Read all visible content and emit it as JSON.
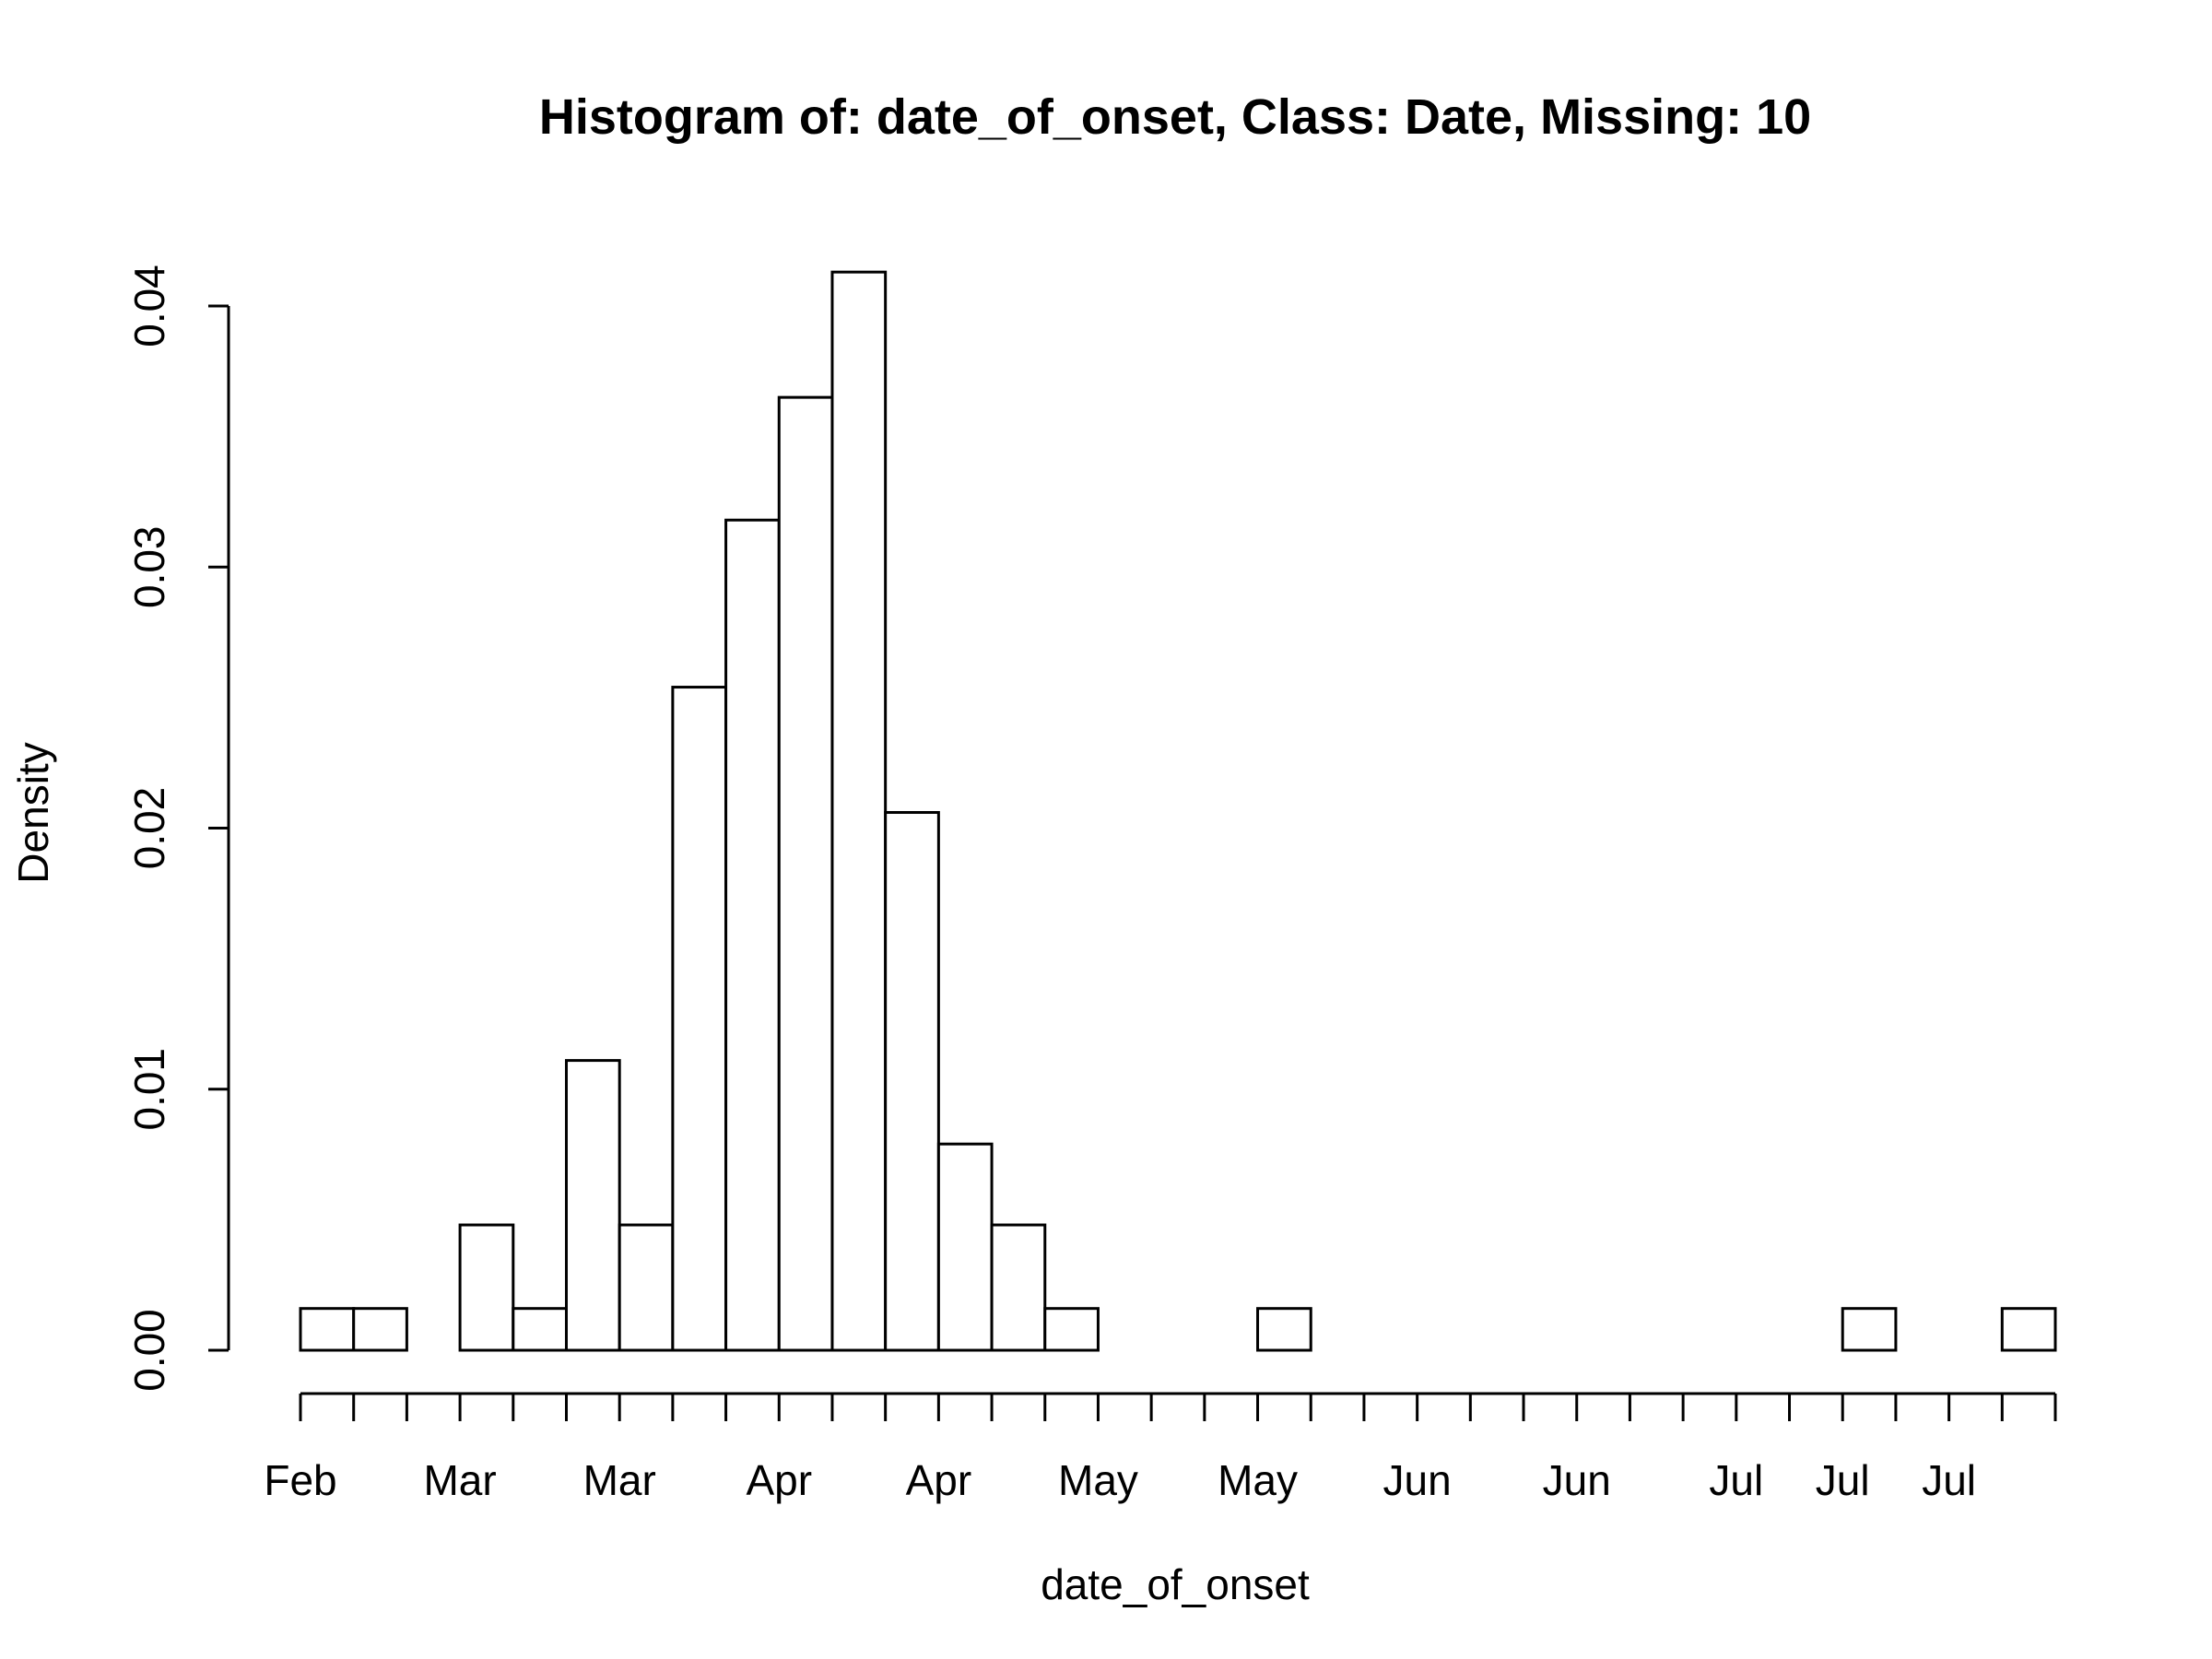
{
  "chart_data": {
    "type": "bar",
    "title": "Histogram of: date_of_onset, Class: Date, Missing: 10",
    "xlabel": "date_of_onset",
    "ylabel": "Density",
    "bin_width_days": 7,
    "bins_start": "2014-02-09",
    "values": [
      0.0016,
      0.0016,
      0,
      0.0048,
      0.0016,
      0.0111,
      0.0048,
      0.0254,
      0.0318,
      0.0365,
      0.0413,
      0.0206,
      0.0079,
      0.0048,
      0.0016,
      0,
      0,
      0,
      0.0016,
      0,
      0,
      0,
      0,
      0,
      0,
      0,
      0,
      0,
      0,
      0.0016,
      0,
      0,
      0.0016
    ],
    "ylim": [
      0,
      0.04
    ],
    "yticks": [
      "0.00",
      "0.01",
      "0.02",
      "0.03",
      "0.04"
    ],
    "xtick_labels": [
      {
        "bin": 0,
        "label": "Feb"
      },
      {
        "bin": 3,
        "label": "Mar"
      },
      {
        "bin": 6,
        "label": "Mar"
      },
      {
        "bin": 9,
        "label": "Apr"
      },
      {
        "bin": 12,
        "label": "Apr"
      },
      {
        "bin": 15,
        "label": "May"
      },
      {
        "bin": 18,
        "label": "May"
      },
      {
        "bin": 21,
        "label": "Jun"
      },
      {
        "bin": 24,
        "label": "Jun"
      },
      {
        "bin": 27,
        "label": "Jul"
      },
      {
        "bin": 29,
        "label": "Jul"
      },
      {
        "bin": 31,
        "label": "Jul"
      }
    ],
    "bar_fill": "#ffffff",
    "bar_stroke": "#000000",
    "grid": false,
    "legend": "none"
  }
}
